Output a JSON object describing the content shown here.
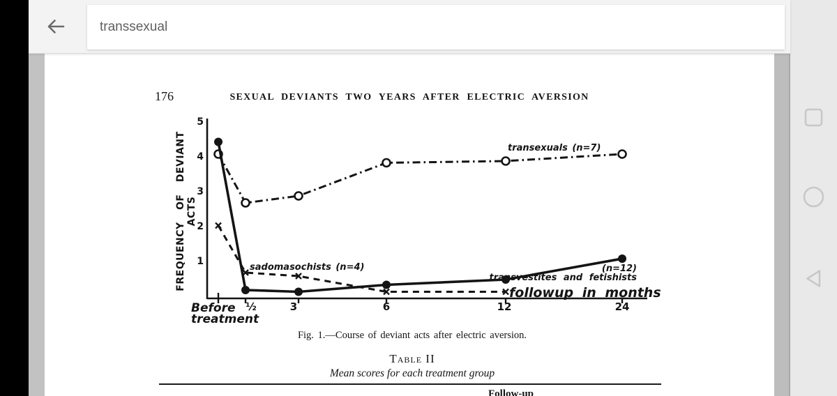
{
  "app": {
    "search_value": "transsexual",
    "nav_icons": [
      "recents",
      "home",
      "back"
    ]
  },
  "document": {
    "page_number": "176",
    "running_head": "SEXUAL DEVIANTS TWO YEARS AFTER ELECTRIC AVERSION",
    "figure_caption": "Fig. 1.—Course of deviant acts after electric aversion.",
    "table_title": "Table II",
    "table_subtitle": "Mean scores for each treatment group",
    "table_partial_header": "Follow-up"
  },
  "chart_data": {
    "type": "line",
    "title": "",
    "ylabel": "FREQUENCY OF DEVIANT ACTS",
    "xlabel": "followup in months",
    "categories": [
      "Before treatment",
      "½",
      "3",
      "6",
      "12",
      "24"
    ],
    "x_months_after_treatment": [
      0,
      0.5,
      3,
      6,
      12,
      24
    ],
    "ylim": [
      0,
      5
    ],
    "grid": false,
    "ytick_labels": [
      "5",
      "4",
      "3",
      "2",
      "1"
    ],
    "xtick_labels": [
      "½",
      "3",
      "6",
      "12",
      "24"
    ],
    "before_label_line1": "Before",
    "before_label_line2": "treatment",
    "series": [
      {
        "name": "transexuals (n=7)",
        "label": "transexuals (n=7)",
        "line_style": "dashdot",
        "marker": "open-circle",
        "values": [
          4.1,
          2.7,
          2.9,
          3.85,
          3.9,
          4.1
        ]
      },
      {
        "name": "transvestites and fetishists (n=12)",
        "label_line1": "(n=12)",
        "label_line2": "transvestites and fetishists",
        "line_style": "solid",
        "marker": "filled-circle",
        "values": [
          4.45,
          0.2,
          0.15,
          0.35,
          0.5,
          1.1
        ]
      },
      {
        "name": "sadomasochists (n=4)",
        "label": "sadomasochists (n=4)",
        "line_style": "dashed",
        "marker": "x",
        "values": [
          2.05,
          0.7,
          0.6,
          0.15,
          0.15,
          null
        ]
      }
    ]
  },
  "colors": {
    "ink": "#141414",
    "page_bg": "#ffffff",
    "topbar_bg": "#f3f3f3",
    "viewer_gutter": "#c2c2c2",
    "nav_rail_bg": "#e9e9e9",
    "nav_icon": "#c8c8c8",
    "search_text": "#5f5f5f"
  }
}
